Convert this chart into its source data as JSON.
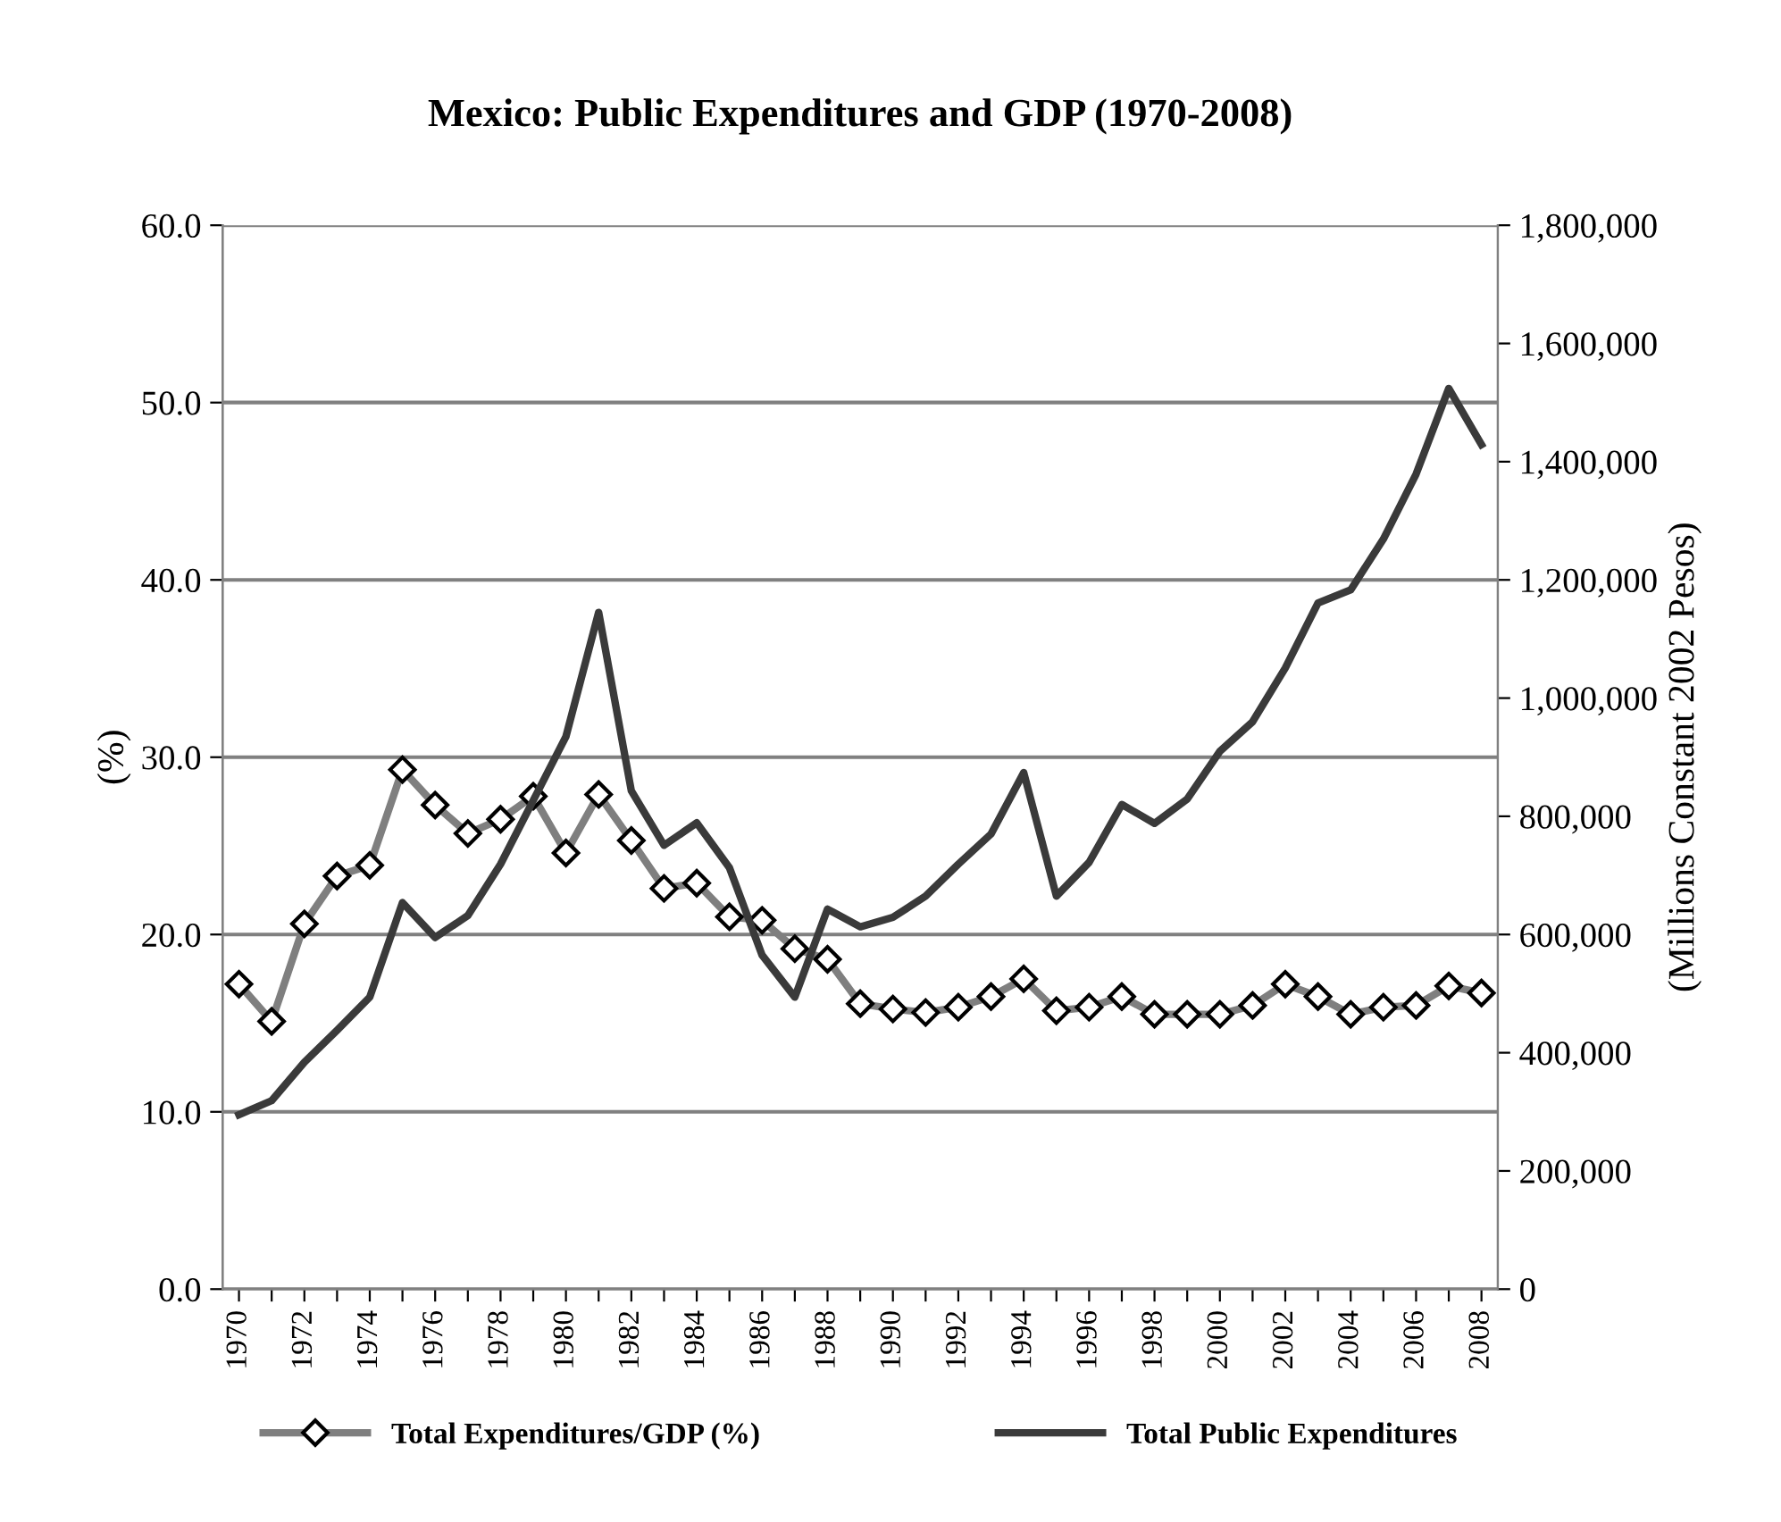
{
  "chart_data": {
    "type": "line",
    "title": "Mexico: Public Expenditures and GDP (1970-2008)",
    "ylabel": "(%)",
    "y2label": "(Millions Constant 2002 Pesos)",
    "categories": [
      "1970",
      null,
      "1972",
      null,
      "1974",
      null,
      "1976",
      null,
      "1978",
      null,
      "1980",
      null,
      "1982",
      null,
      "1984",
      null,
      "1986",
      null,
      "1988",
      null,
      "1990",
      null,
      "1992",
      null,
      "1994",
      null,
      "1996",
      null,
      "1998",
      null,
      "2000",
      null,
      "2002",
      null,
      "2004",
      null,
      "2006",
      null,
      "2008"
    ],
    "series": [
      {
        "name": "Total Expenditures/GDP (%)",
        "color": "#7f7f7f",
        "marker": "diamond",
        "values": [
          17.2,
          15.1,
          20.6,
          23.3,
          23.9,
          29.3,
          27.3,
          25.7,
          26.5,
          27.8,
          24.6,
          27.9,
          25.3,
          22.6,
          22.9,
          21.0,
          20.8,
          19.2,
          18.6,
          16.1,
          15.8,
          15.6,
          15.9,
          16.5,
          17.5,
          15.7,
          15.9,
          16.5,
          15.5,
          15.5,
          15.5,
          16.0,
          17.2,
          16.5,
          15.5,
          15.9,
          16.0,
          17.1,
          16.7
        ]
      },
      {
        "name": "Total Public Expenditures",
        "color": "#3a3a3a",
        "marker": "none",
        "axis": "y2",
        "values": [
          295000,
          319000,
          384000,
          438000,
          494000,
          654000,
          595000,
          632000,
          719000,
          827000,
          935000,
          1145000,
          843000,
          751000,
          789000,
          713000,
          565000,
          494000,
          643000,
          613000,
          629000,
          665000,
          719000,
          770000,
          874000,
          665000,
          722000,
          820000,
          788000,
          829000,
          910000,
          960000,
          1051000,
          1161000,
          1183000,
          1269000,
          1379000,
          1524000,
          1429000
        ]
      }
    ],
    "ylim": [
      0,
      60
    ],
    "yticks": [
      {
        "value": 0,
        "label": "0.0"
      },
      {
        "value": 10,
        "label": "10.0"
      },
      {
        "value": 20,
        "label": "20.0"
      },
      {
        "value": 30,
        "label": "30.0"
      },
      {
        "value": 40,
        "label": "40.0"
      },
      {
        "value": 50,
        "label": "50.0"
      },
      {
        "value": 60,
        "label": "60.0"
      }
    ],
    "y2lim": [
      0,
      1800000
    ],
    "y2ticks": [
      0,
      {
        "value": 200000,
        "label": "200,000"
      },
      {
        "value": 400000,
        "label": "400,000"
      },
      {
        "value": 600000,
        "label": "600,000"
      },
      {
        "value": 800000,
        "label": "800,000"
      },
      {
        "value": 1000000,
        "label": "1,000,000"
      },
      {
        "value": 1200000,
        "label": "1,200,000"
      },
      {
        "value": 1400000,
        "label": "1,400,000"
      },
      {
        "value": 1600000,
        "label": "1,600,000"
      },
      {
        "value": 1800000,
        "label": "1,800,000"
      }
    ],
    "grid": "y",
    "legend": "bottom",
    "line_style": "solid"
  }
}
